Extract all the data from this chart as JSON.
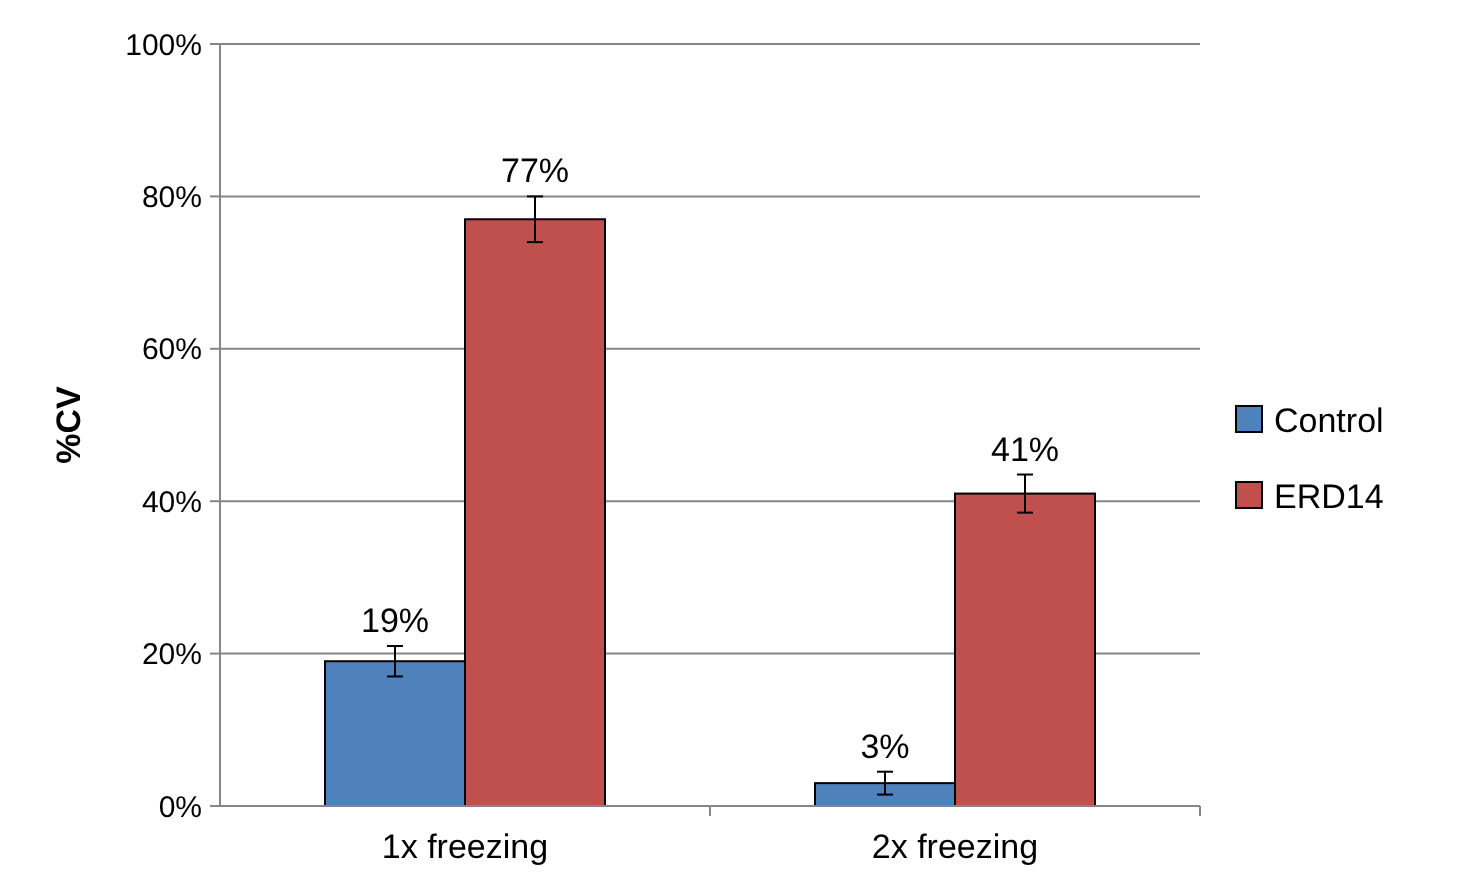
{
  "chart_data": {
    "type": "bar",
    "ylabel": "%CV",
    "categories": [
      "1x freezing",
      "2x freezing"
    ],
    "series": [
      {
        "name": "Control",
        "color": "#4f81bd",
        "values": [
          19,
          3
        ],
        "errors": [
          2,
          1.5
        ],
        "value_labels": [
          "19%",
          "3%"
        ]
      },
      {
        "name": "ERD14",
        "color": "#c0504d",
        "values": [
          77,
          41
        ],
        "errors": [
          3,
          2.5
        ],
        "value_labels": [
          "77%",
          "41%"
        ]
      }
    ],
    "ylim": [
      0,
      100
    ],
    "yticks": [
      {
        "value": 0,
        "label": "0%"
      },
      {
        "value": 20,
        "label": "20%"
      },
      {
        "value": 40,
        "label": "40%"
      },
      {
        "value": 60,
        "label": "60%"
      },
      {
        "value": 80,
        "label": "80%"
      },
      {
        "value": 100,
        "label": "100%"
      }
    ],
    "grid": "y",
    "legend": "right"
  }
}
